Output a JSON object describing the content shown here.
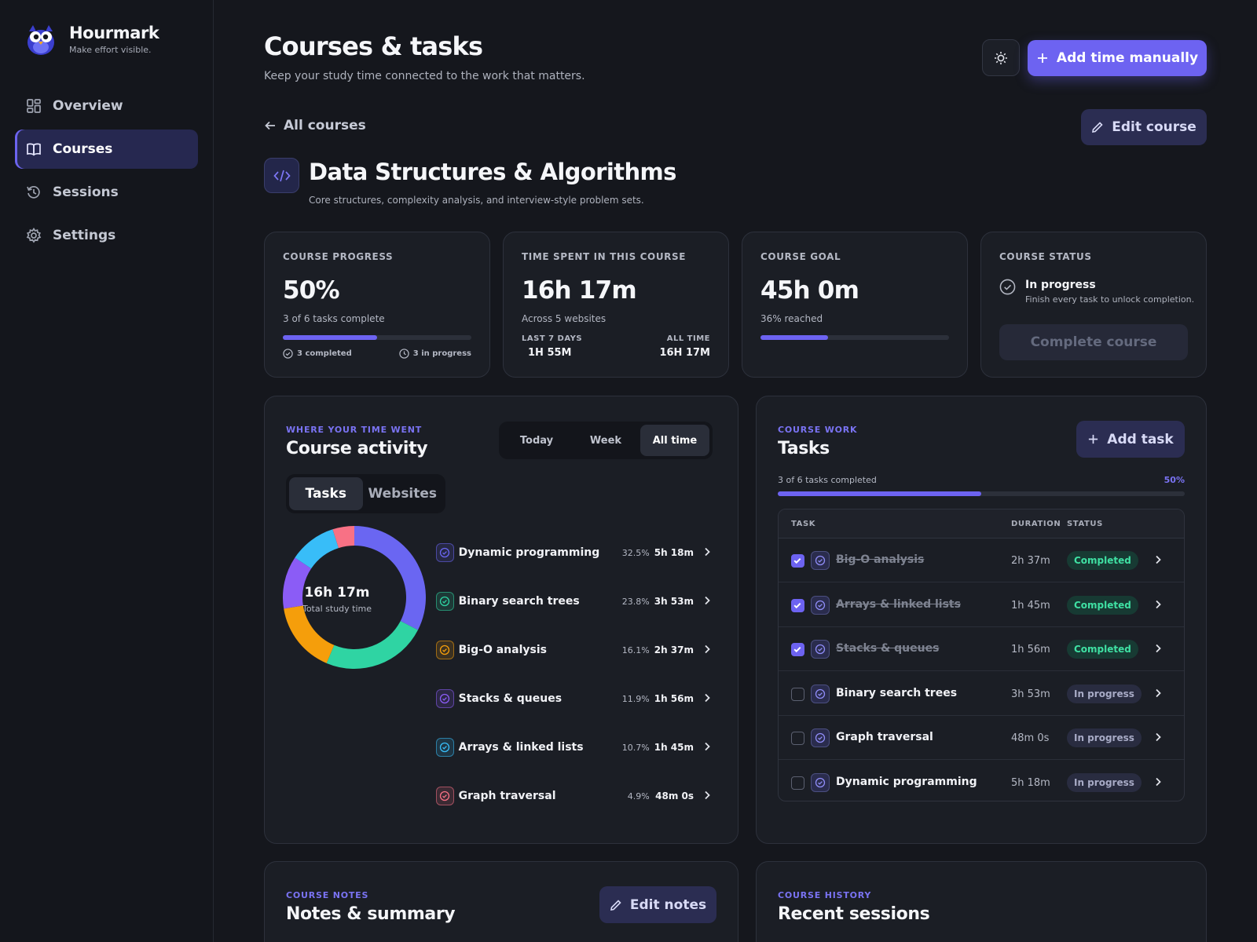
{
  "app": {
    "name": "Hourmark",
    "tagline": "Make effort visible."
  },
  "nav": [
    {
      "label": "Overview",
      "icon": "grid-icon",
      "active": false
    },
    {
      "label": "Courses",
      "icon": "book-icon",
      "active": true
    },
    {
      "label": "Sessions",
      "icon": "history-icon",
      "active": false
    },
    {
      "label": "Settings",
      "icon": "gear-icon",
      "active": false
    }
  ],
  "header": {
    "title": "Courses & tasks",
    "subtitle": "Keep your study time connected to the work that matters.",
    "add_time_label": "Add time manually"
  },
  "course": {
    "back_label": "All courses",
    "edit_label": "Edit course",
    "title": "Data Structures & Algorithms",
    "description": "Core structures, complexity analysis, and interview-style problem sets."
  },
  "stats": {
    "progress": {
      "label": "COURSE PROGRESS",
      "value": "50%",
      "sub": "3 of 6 tasks complete",
      "fraction": 0.5,
      "completed": "3 completed",
      "in_progress": "3 in progress"
    },
    "time": {
      "label": "TIME SPENT IN THIS COURSE",
      "value": "16h 17m",
      "sub": "Across 5 websites",
      "last7_label": "LAST 7 DAYS",
      "last7_value": "1H 55M",
      "all_label": "ALL TIME",
      "all_value": "16H 17M"
    },
    "goal": {
      "label": "COURSE GOAL",
      "value": "45h 0m",
      "sub": "36% reached",
      "fraction": 0.36
    },
    "status": {
      "label": "COURSE STATUS",
      "title": "In progress",
      "sub": "Finish every task to unlock completion.",
      "button": "Complete course"
    }
  },
  "activity": {
    "eyebrow": "WHERE YOUR TIME WENT",
    "title": "Course activity",
    "ranges": [
      "Today",
      "Week",
      "All time"
    ],
    "active_range": "All time",
    "views": [
      "Tasks",
      "Websites"
    ],
    "active_view": "Tasks",
    "total": "16h 17m",
    "total_label": "Total study time",
    "items": [
      {
        "name": "Dynamic programming",
        "pct": "32.5%",
        "time": "5h 18m",
        "share": 32.5,
        "color": "#6a66f2"
      },
      {
        "name": "Binary search trees",
        "pct": "23.8%",
        "time": "3h 53m",
        "share": 23.8,
        "color": "#2fd4a3"
      },
      {
        "name": "Big-O analysis",
        "pct": "16.1%",
        "time": "2h 37m",
        "share": 16.1,
        "color": "#f59e0b"
      },
      {
        "name": "Stacks & queues",
        "pct": "11.9%",
        "time": "1h 56m",
        "share": 11.9,
        "color": "#8b5cf6"
      },
      {
        "name": "Arrays & linked lists",
        "pct": "10.7%",
        "time": "1h 45m",
        "share": 10.7,
        "color": "#38bdf8"
      },
      {
        "name": "Graph traversal",
        "pct": "4.9%",
        "time": "48m 0s",
        "share": 4.9,
        "color": "#f87185"
      }
    ]
  },
  "tasks": {
    "eyebrow": "COURSE WORK",
    "title": "Tasks",
    "add_label": "Add task",
    "count_text": "3 of 6 tasks completed",
    "pct_text": "50%",
    "fraction": 0.5,
    "columns": [
      "TASK",
      "DURATION",
      "STATUS"
    ],
    "rows": [
      {
        "name": "Big-O analysis",
        "duration": "2h 37m",
        "status": "Completed",
        "done": true
      },
      {
        "name": "Arrays & linked lists",
        "duration": "1h 45m",
        "status": "Completed",
        "done": true
      },
      {
        "name": "Stacks & queues",
        "duration": "1h 56m",
        "status": "Completed",
        "done": true
      },
      {
        "name": "Binary search trees",
        "duration": "3h 53m",
        "status": "In progress",
        "done": false
      },
      {
        "name": "Graph traversal",
        "duration": "48m 0s",
        "status": "In progress",
        "done": false
      },
      {
        "name": "Dynamic programming",
        "duration": "5h 18m",
        "status": "In progress",
        "done": false
      }
    ]
  },
  "notes": {
    "eyebrow": "COURSE NOTES",
    "title": "Notes & summary",
    "edit_label": "Edit notes"
  },
  "history": {
    "eyebrow": "COURSE HISTORY",
    "title": "Recent sessions"
  }
}
